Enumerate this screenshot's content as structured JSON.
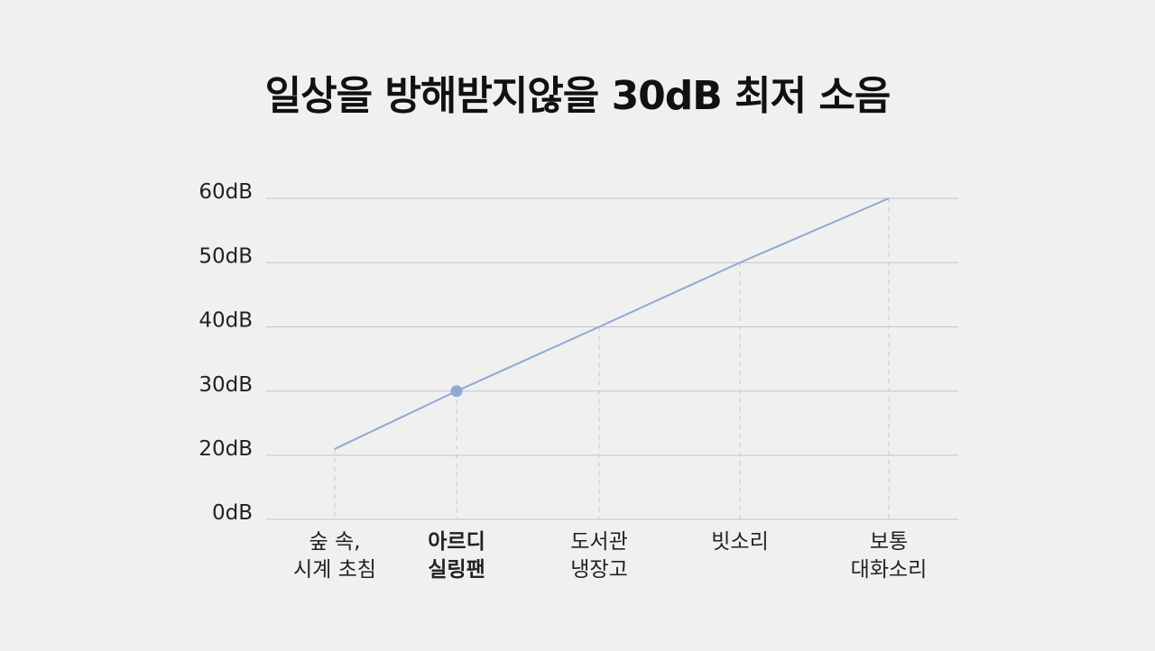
{
  "chart_data": {
    "type": "line",
    "title": "일상을 방해받지않을 30dB 최저 소음",
    "xlabel": "",
    "ylabel": "",
    "ylim": [
      0,
      60
    ],
    "yticks": [
      {
        "value": 0,
        "label": "0dB"
      },
      {
        "value": 20,
        "label": "20dB"
      },
      {
        "value": 30,
        "label": "30dB"
      },
      {
        "value": 40,
        "label": "40dB"
      },
      {
        "value": 50,
        "label": "50dB"
      },
      {
        "value": 60,
        "label": "60dB"
      }
    ],
    "categories": [
      [
        "숲 속,",
        "시계 초침"
      ],
      [
        "아르디",
        "실링팬"
      ],
      [
        "도서관",
        "냉장고"
      ],
      [
        "빗소리"
      ],
      [
        "보통",
        "대화소리"
      ]
    ],
    "values": [
      21,
      30,
      40,
      50,
      60
    ],
    "highlight_index": 1,
    "grid": true,
    "colors": {
      "line": "#8fa9d3",
      "highlight_label": "#8fa9d3",
      "grid": "#c4c4c4",
      "guide": "#c9cfe0",
      "text": "#222222",
      "background": "#f0f0f0"
    }
  }
}
